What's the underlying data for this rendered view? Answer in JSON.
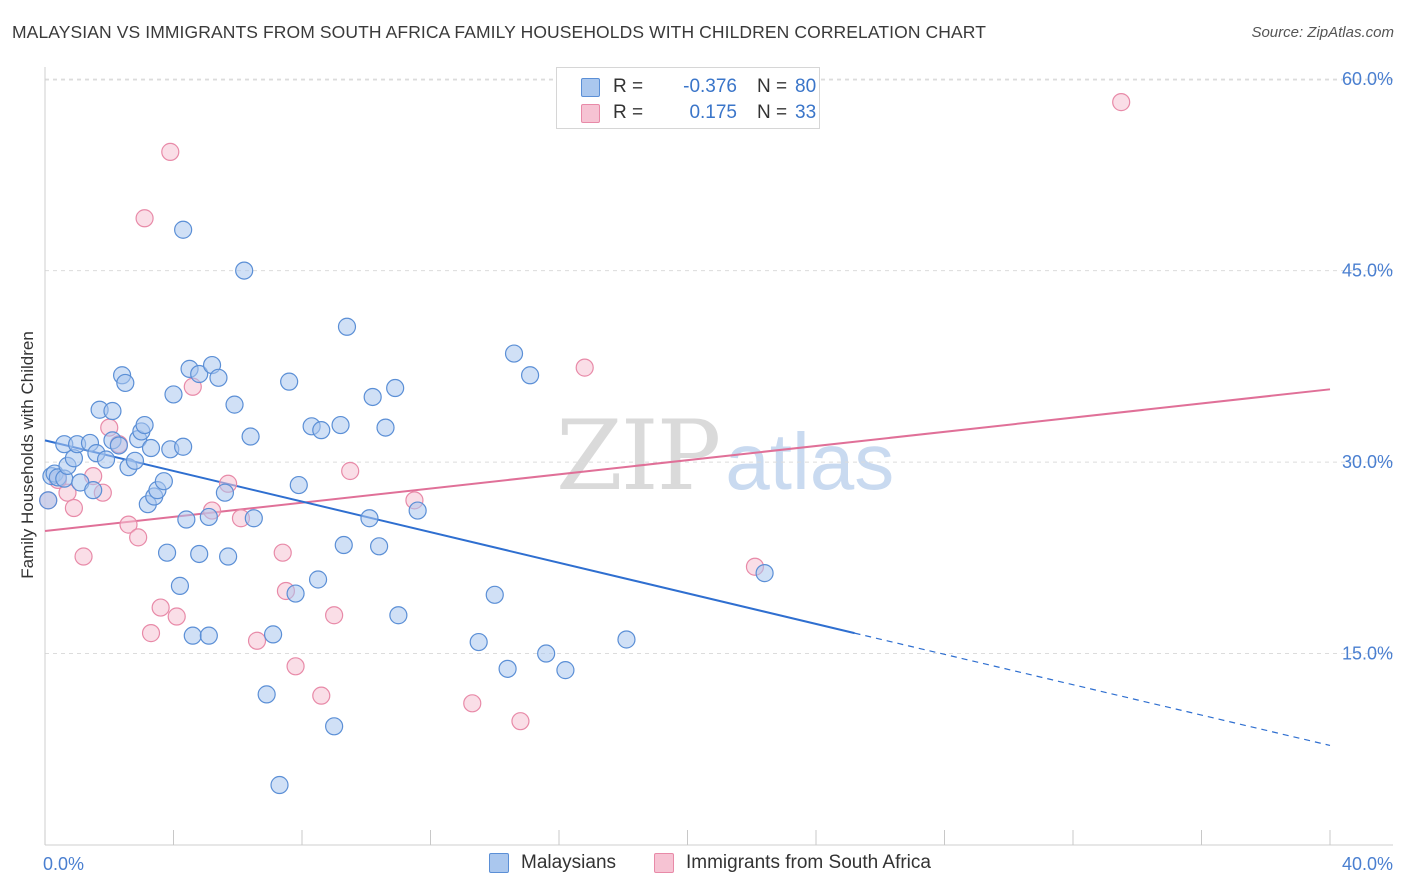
{
  "title": "MALAYSIAN VS IMMIGRANTS FROM SOUTH AFRICA FAMILY HOUSEHOLDS WITH CHILDREN CORRELATION CHART",
  "source": "Source: ZipAtlas.com",
  "watermark": {
    "zip": "ZIP",
    "atlas": "atlas"
  },
  "colors": {
    "blue_fill": "#aac7ee",
    "blue_stroke": "#5b8fd6",
    "blue_line": "#2f6fd0",
    "pink_fill": "#f6c3d3",
    "pink_stroke": "#e88aa8",
    "pink_line": "#e07098",
    "grid": "#dcdcdc",
    "axis_text": "#4a7fd0"
  },
  "stats": {
    "rows": [
      {
        "r_label": "R =",
        "r_value": "-0.376",
        "n_label": "N =",
        "n_value": "80"
      },
      {
        "r_label": "R =",
        "r_value": "0.175",
        "n_label": "N =",
        "n_value": "33"
      }
    ]
  },
  "legend": {
    "items": [
      "Malaysians",
      "Immigrants from South Africa"
    ]
  },
  "chart_data": {
    "type": "scatter",
    "title": "MALAYSIAN VS IMMIGRANTS FROM SOUTH AFRICA FAMILY HOUSEHOLDS WITH CHILDREN CORRELATION CHART",
    "xlabel": "",
    "ylabel": "Family Households with Children",
    "xlim": [
      0,
      40
    ],
    "ylim": [
      0,
      60
    ],
    "x_tick_labels": [
      "0.0%",
      "40.0%"
    ],
    "y_ticks": [
      15,
      30,
      45,
      60
    ],
    "y_tick_labels": [
      "15.0%",
      "30.0%",
      "45.0%",
      "60.0%"
    ],
    "grid": true,
    "legend_position": "bottom",
    "series": [
      {
        "name": "Malaysians",
        "r": -0.376,
        "n": 80,
        "trend": {
          "x0": 0,
          "y0": 31.7,
          "x1": 25.2,
          "y1": 16.6,
          "dashed_to_x": 40,
          "dashed_to_y": 7.8
        },
        "points": [
          [
            0.1,
            27.0
          ],
          [
            0.2,
            28.9
          ],
          [
            0.3,
            29.1
          ],
          [
            0.4,
            28.8
          ],
          [
            0.6,
            28.7
          ],
          [
            0.6,
            31.4
          ],
          [
            0.7,
            29.7
          ],
          [
            0.9,
            30.3
          ],
          [
            1.0,
            31.4
          ],
          [
            1.1,
            28.4
          ],
          [
            1.4,
            31.5
          ],
          [
            1.5,
            27.8
          ],
          [
            1.6,
            30.7
          ],
          [
            1.7,
            34.1
          ],
          [
            1.9,
            30.2
          ],
          [
            2.1,
            34.0
          ],
          [
            2.1,
            31.7
          ],
          [
            2.3,
            31.3
          ],
          [
            2.4,
            36.8
          ],
          [
            2.5,
            36.2
          ],
          [
            2.6,
            29.6
          ],
          [
            2.8,
            30.1
          ],
          [
            2.9,
            31.8
          ],
          [
            3.0,
            32.4
          ],
          [
            3.1,
            32.9
          ],
          [
            3.2,
            26.7
          ],
          [
            3.3,
            31.1
          ],
          [
            3.4,
            27.3
          ],
          [
            3.5,
            27.8
          ],
          [
            3.7,
            28.5
          ],
          [
            3.8,
            22.9
          ],
          [
            3.9,
            31.0
          ],
          [
            4.0,
            35.3
          ],
          [
            4.2,
            20.3
          ],
          [
            4.3,
            31.2
          ],
          [
            4.4,
            25.5
          ],
          [
            4.5,
            37.3
          ],
          [
            4.6,
            16.4
          ],
          [
            4.8,
            22.8
          ],
          [
            4.8,
            36.9
          ],
          [
            5.1,
            25.7
          ],
          [
            5.1,
            16.4
          ],
          [
            5.2,
            37.6
          ],
          [
            5.4,
            36.6
          ],
          [
            5.6,
            27.6
          ],
          [
            5.7,
            22.6
          ],
          [
            5.9,
            34.5
          ],
          [
            6.2,
            45.0
          ],
          [
            6.4,
            32.0
          ],
          [
            6.5,
            25.6
          ],
          [
            6.9,
            11.8
          ],
          [
            7.1,
            16.5
          ],
          [
            7.3,
            4.7
          ],
          [
            7.6,
            36.3
          ],
          [
            7.8,
            19.7
          ],
          [
            7.9,
            28.2
          ],
          [
            8.3,
            32.8
          ],
          [
            8.5,
            20.8
          ],
          [
            8.6,
            32.5
          ],
          [
            9.0,
            9.3
          ],
          [
            9.2,
            32.9
          ],
          [
            9.3,
            23.5
          ],
          [
            9.4,
            40.6
          ],
          [
            10.1,
            25.6
          ],
          [
            10.2,
            35.1
          ],
          [
            10.4,
            23.4
          ],
          [
            10.6,
            32.7
          ],
          [
            10.9,
            35.8
          ],
          [
            11.0,
            18.0
          ],
          [
            11.6,
            26.2
          ],
          [
            13.5,
            15.9
          ],
          [
            14.0,
            19.6
          ],
          [
            14.4,
            13.8
          ],
          [
            14.6,
            38.5
          ],
          [
            15.1,
            36.8
          ],
          [
            15.6,
            15.0
          ],
          [
            16.2,
            13.7
          ],
          [
            18.1,
            16.1
          ],
          [
            22.4,
            21.3
          ],
          [
            4.3,
            48.2
          ]
        ]
      },
      {
        "name": "Immigrants from South Africa",
        "r": 0.175,
        "n": 33,
        "trend": {
          "x0": 0,
          "y0": 24.6,
          "x1": 40,
          "y1": 35.7
        },
        "points": [
          [
            0.1,
            27.0
          ],
          [
            0.4,
            28.6
          ],
          [
            0.7,
            27.6
          ],
          [
            0.9,
            26.4
          ],
          [
            1.2,
            22.6
          ],
          [
            1.5,
            28.9
          ],
          [
            1.8,
            27.6
          ],
          [
            2.0,
            32.7
          ],
          [
            2.3,
            31.4
          ],
          [
            2.6,
            25.1
          ],
          [
            2.9,
            24.1
          ],
          [
            3.1,
            49.1
          ],
          [
            3.3,
            16.6
          ],
          [
            3.6,
            18.6
          ],
          [
            3.9,
            54.3
          ],
          [
            4.1,
            17.9
          ],
          [
            4.6,
            35.9
          ],
          [
            5.2,
            26.2
          ],
          [
            5.7,
            28.3
          ],
          [
            6.1,
            25.6
          ],
          [
            6.6,
            16.0
          ],
          [
            7.4,
            22.9
          ],
          [
            7.5,
            19.9
          ],
          [
            7.8,
            14.0
          ],
          [
            8.6,
            11.7
          ],
          [
            9.0,
            18.0
          ],
          [
            9.5,
            29.3
          ],
          [
            11.5,
            27.0
          ],
          [
            13.3,
            11.1
          ],
          [
            14.8,
            9.7
          ],
          [
            16.8,
            37.4
          ],
          [
            22.1,
            21.8
          ],
          [
            33.5,
            58.2
          ]
        ]
      }
    ]
  }
}
